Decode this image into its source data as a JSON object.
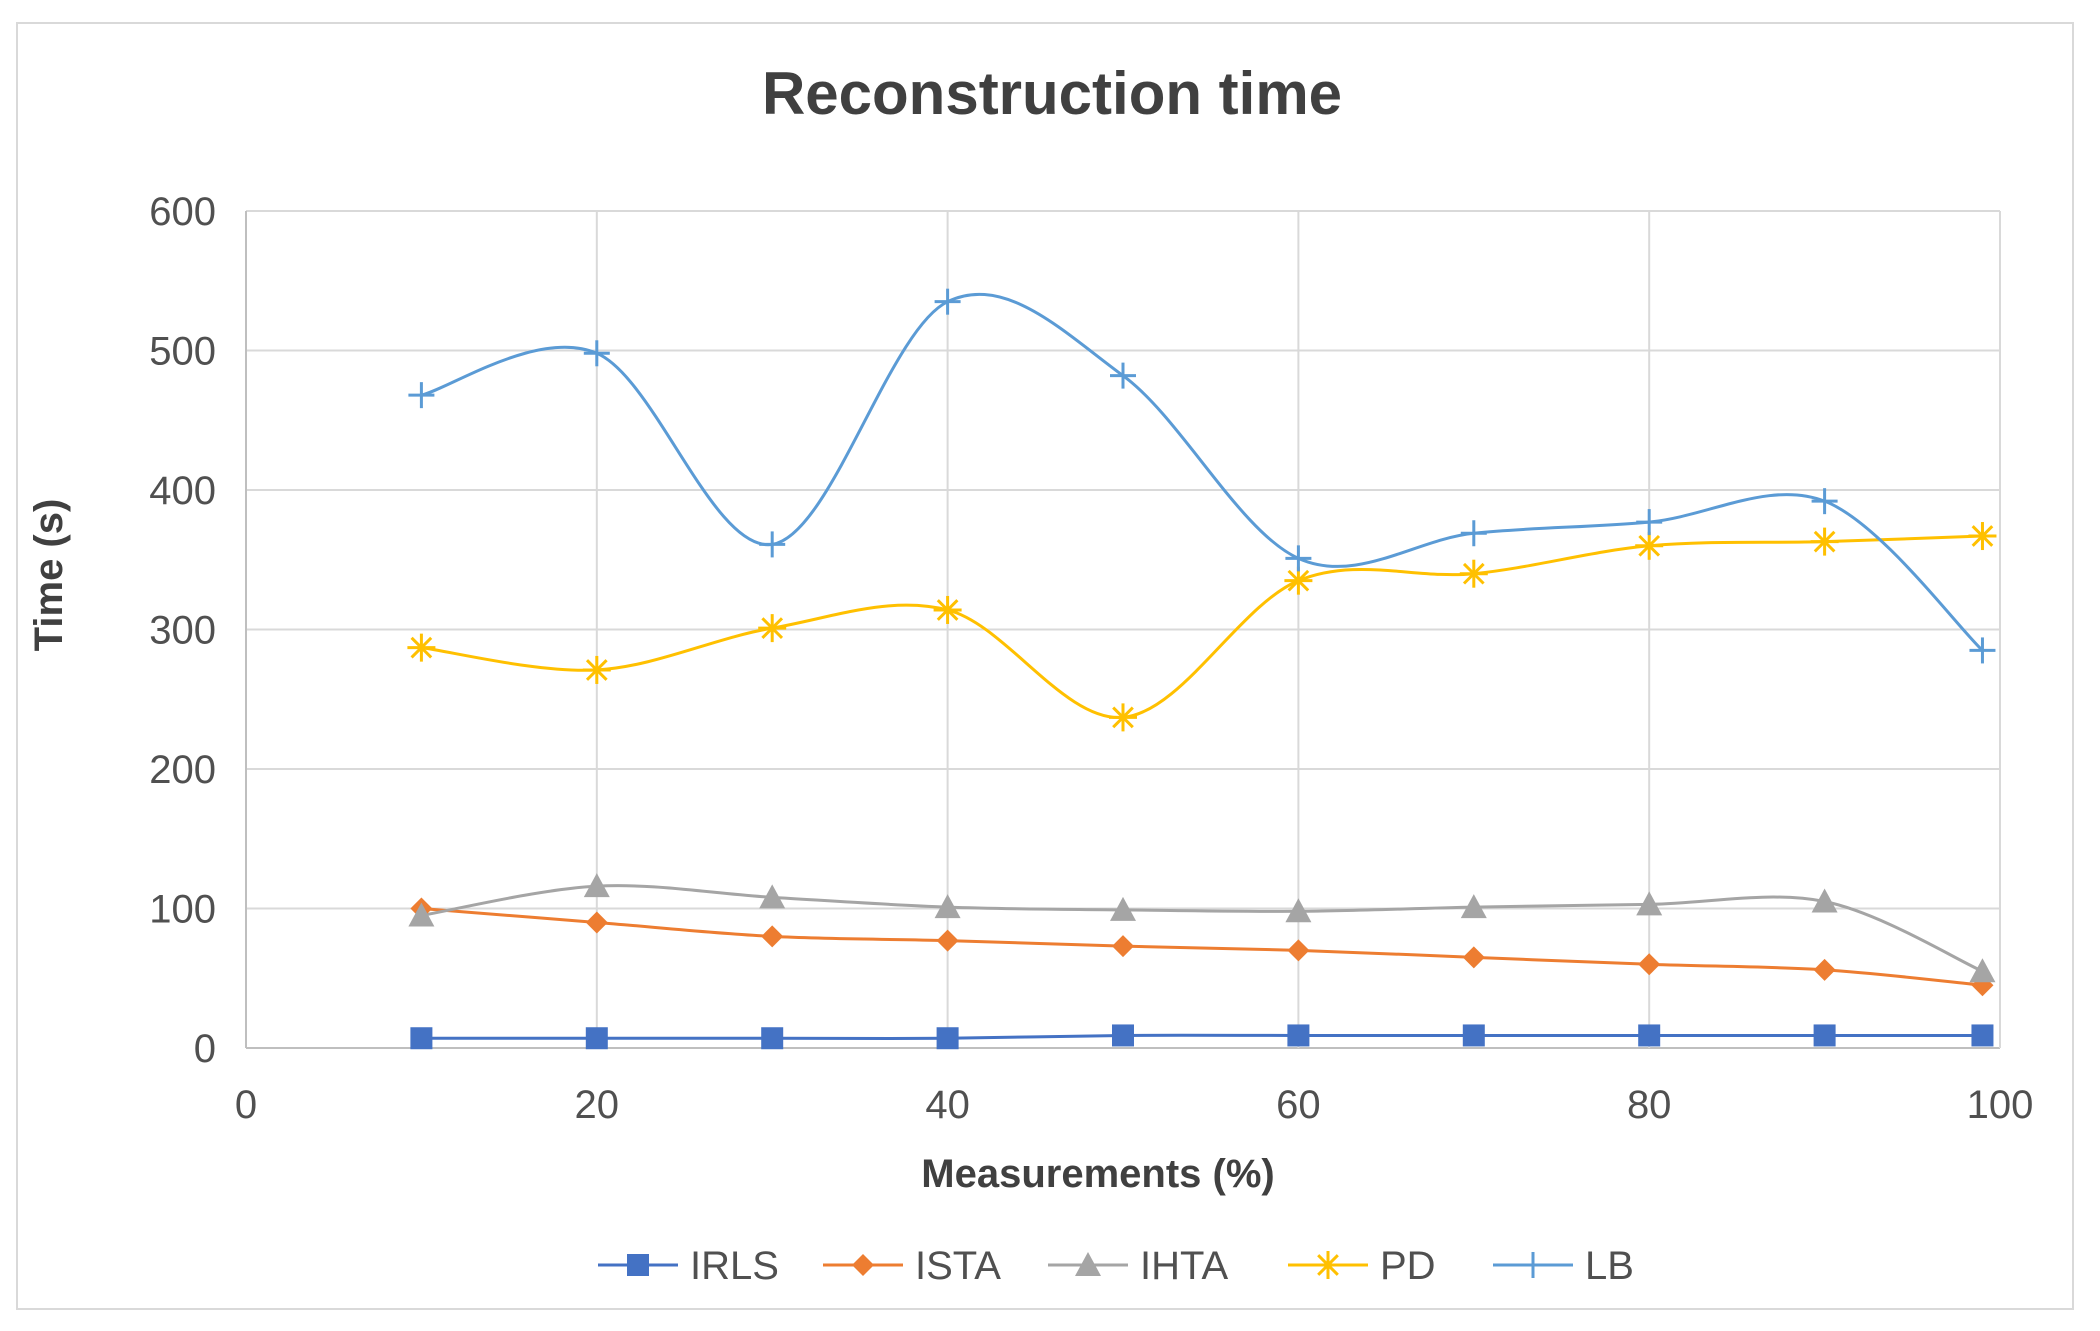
{
  "chart_data": {
    "type": "line",
    "smooth": true,
    "title": "Reconstruction  time",
    "xlabel": "Measurements (%)",
    "ylabel": "Time (s)",
    "xlim": [
      0,
      100
    ],
    "ylim": [
      0,
      600
    ],
    "xticks": [
      0,
      20,
      40,
      60,
      80,
      100
    ],
    "yticks": [
      0,
      100,
      200,
      300,
      400,
      500,
      600
    ],
    "grid": "both",
    "legend_position": "bottom",
    "x": [
      10,
      20,
      30,
      40,
      50,
      60,
      70,
      80,
      90,
      99
    ],
    "series": [
      {
        "name": "IRLS",
        "color": "#4472C4",
        "marker": "square",
        "values": [
          7,
          7,
          7,
          7,
          9,
          9,
          9,
          9,
          9,
          9
        ]
      },
      {
        "name": "ISTA",
        "color": "#ED7D31",
        "marker": "diamond",
        "values": [
          100,
          90,
          80,
          77,
          73,
          70,
          65,
          60,
          56,
          45
        ]
      },
      {
        "name": "IHTA",
        "color": "#A5A5A5",
        "marker": "triangle",
        "values": [
          95,
          116,
          108,
          101,
          99,
          98,
          101,
          103,
          105,
          55
        ]
      },
      {
        "name": "PD",
        "color": "#FFC000",
        "marker": "star",
        "values": [
          287,
          271,
          301,
          314,
          237,
          335,
          340,
          360,
          363,
          367
        ]
      },
      {
        "name": "LB",
        "color": "#5B9BD5",
        "marker": "plus",
        "values": [
          468,
          498,
          361,
          535,
          482,
          351,
          369,
          377,
          392,
          285
        ]
      }
    ]
  }
}
